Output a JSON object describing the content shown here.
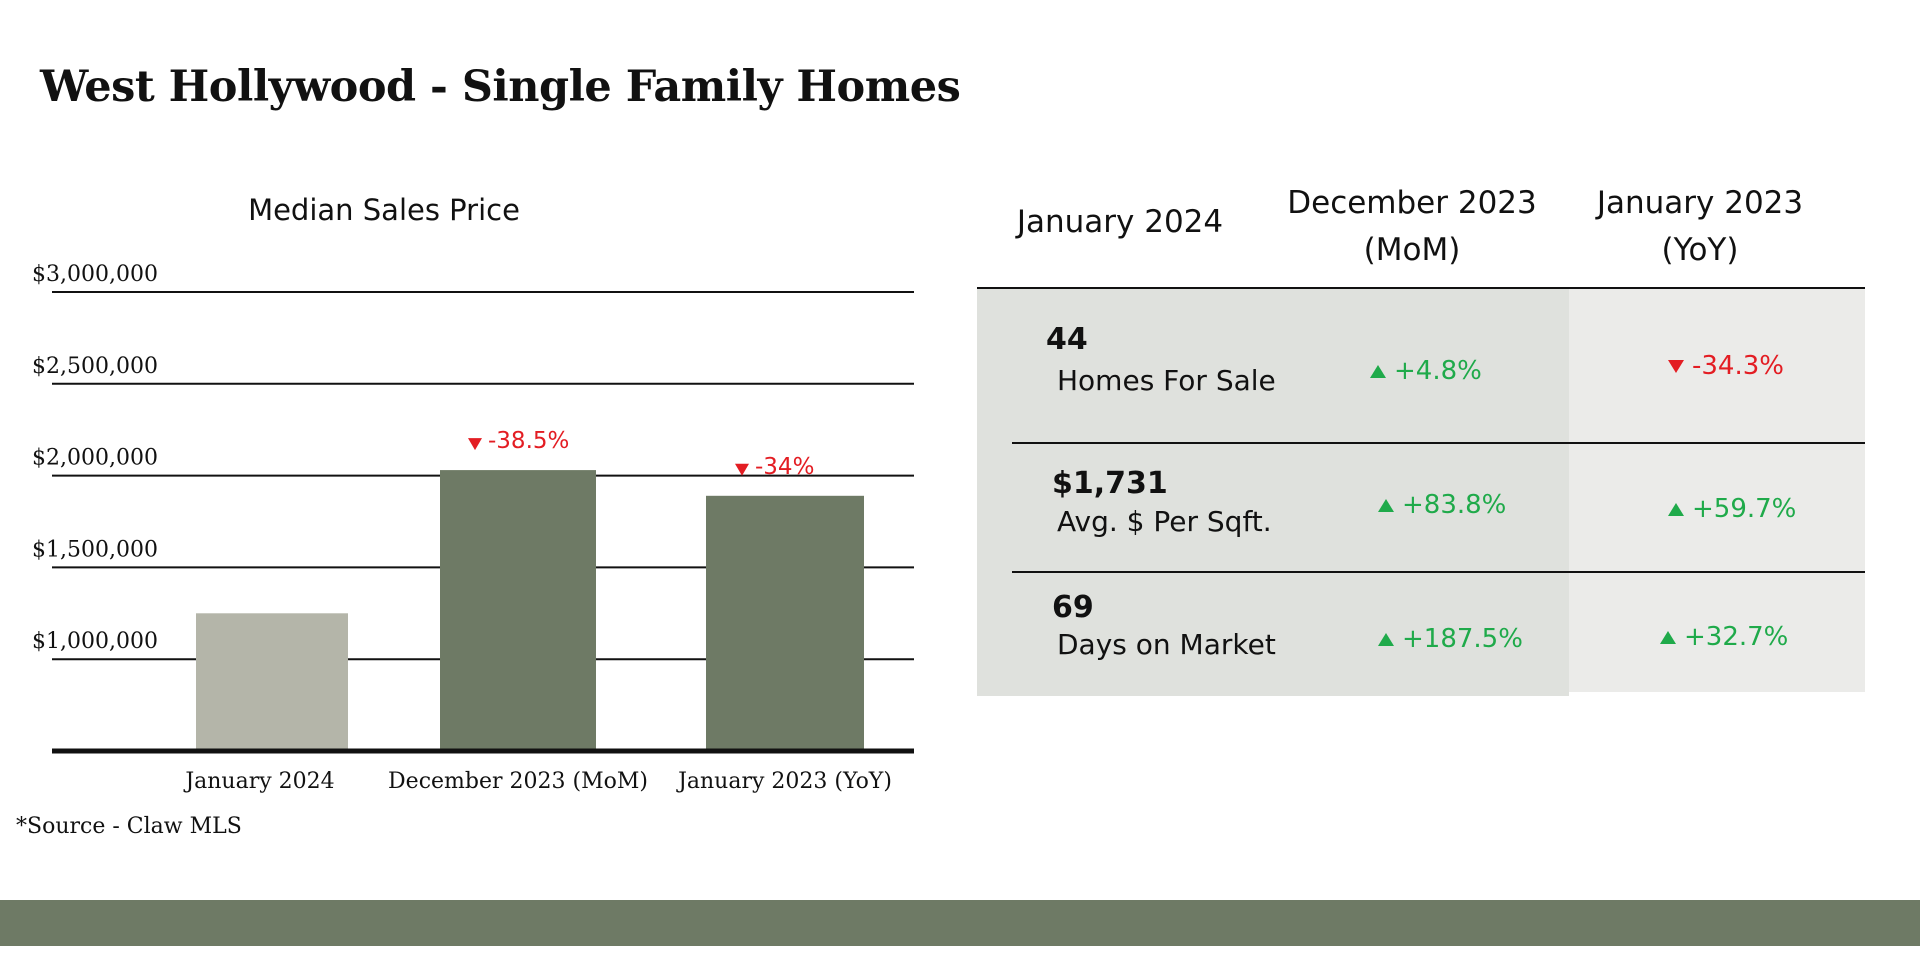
{
  "page": {
    "title": "West Hollywood - Single Family Homes",
    "source": "*Source - Claw MLS"
  },
  "colors": {
    "bar_current": "#b4b5a9",
    "bar_compare": "#6e7a65",
    "negative": "#e31d23",
    "positive": "#1faa4a",
    "cell_a": "#dfe1dd",
    "cell_b": "#ebebe9",
    "footer": "#6e7a65"
  },
  "chart_data": {
    "type": "bar",
    "title": "Median Sales Price",
    "categories": [
      "January 2024",
      "December 2023 (MoM)",
      "January 2023 (YoY)"
    ],
    "values": [
      1250000,
      2030000,
      1890000
    ],
    "data_labels": [
      "",
      "-38.5%",
      "-34%"
    ],
    "data_label_direction": [
      "",
      "down",
      "down"
    ],
    "yticks": [
      1000000,
      1500000,
      2000000,
      2500000,
      3000000
    ],
    "ytick_labels": [
      "$1,000,000",
      "$1,500,000",
      "$2,000,000",
      "$2,500,000",
      "$3,000,000"
    ],
    "ylim": [
      500000,
      3000000
    ],
    "xlabel": "",
    "ylabel": "",
    "grid": true
  },
  "table": {
    "headers": {
      "current": "January 2024",
      "mom_line1": "December 2023",
      "mom_line2": "(MoM)",
      "yoy_line1": "January 2023",
      "yoy_line2": "(YoY)"
    },
    "rows": [
      {
        "value": "44",
        "label": "Homes For Sale",
        "mom": "+4.8%",
        "mom_dir": "up",
        "yoy": "-34.3%",
        "yoy_dir": "down"
      },
      {
        "value": "$1,731",
        "label": "Avg. $ Per Sqft.",
        "mom": "+83.8%",
        "mom_dir": "up",
        "yoy": "+59.7%",
        "yoy_dir": "up"
      },
      {
        "value": "69",
        "label": "Days on Market",
        "mom": "+187.5%",
        "mom_dir": "up",
        "yoy": "+32.7%",
        "yoy_dir": "up"
      }
    ]
  }
}
